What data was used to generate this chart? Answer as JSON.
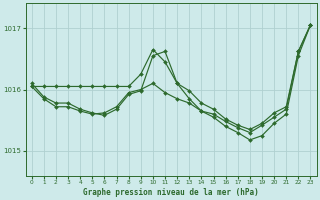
{
  "title": "Graphe pression niveau de la mer (hPa)",
  "background_color": "#ceeaea",
  "grid_color": "#b0d0d0",
  "line_color": "#2d6a2d",
  "marker_color": "#2d6a2d",
  "xlim": [
    -0.5,
    23.5
  ],
  "ylim": [
    1014.6,
    1017.4
  ],
  "yticks": [
    1015,
    1016,
    1017
  ],
  "xticks": [
    0,
    1,
    2,
    3,
    4,
    5,
    6,
    7,
    8,
    9,
    10,
    11,
    12,
    13,
    14,
    15,
    16,
    17,
    18,
    19,
    20,
    21,
    22,
    23
  ],
  "series": [
    {
      "x": [
        0,
        1,
        2,
        3,
        4,
        5,
        6,
        7,
        8,
        9,
        10,
        11,
        12,
        13,
        14,
        15,
        16,
        17,
        18,
        19,
        20,
        21,
        22,
        23
      ],
      "y": [
        1016.1,
        1015.85,
        1015.75,
        1015.75,
        1015.65,
        1015.6,
        1015.6,
        1015.7,
        1015.95,
        1016.0,
        1016.6,
        1016.5,
        1016.15,
        1016.0,
        1015.75,
        1015.7,
        1015.5,
        1015.4,
        1015.35,
        1015.45,
        1015.6,
        1015.7,
        1016.65,
        1017.05
      ]
    },
    {
      "x": [
        0,
        1,
        2,
        3,
        4,
        5,
        6,
        7,
        8,
        9,
        10,
        11,
        12,
        13,
        14,
        15,
        16,
        17,
        18,
        19,
        20,
        21,
        22,
        23
      ],
      "y": [
        1016.1,
        1015.85,
        1015.72,
        1015.72,
        1015.62,
        1015.58,
        1015.6,
        1015.75,
        1016.0,
        1016.0,
        1016.1,
        1016.0,
        1015.95,
        1015.88,
        1015.7,
        1015.62,
        1015.48,
        1015.38,
        1015.32,
        1015.42,
        1015.58,
        1015.7,
        1016.62,
        1017.05
      ]
    },
    {
      "x": [
        0,
        1,
        2,
        3,
        4,
        5,
        6,
        7,
        8,
        9,
        10,
        11,
        12,
        13,
        14,
        15,
        16,
        17,
        18,
        19,
        20,
        21,
        22,
        23
      ],
      "y": [
        1016.1,
        1015.85,
        1015.65,
        1015.65,
        1015.52,
        1015.45,
        1015.5,
        1015.65,
        1015.88,
        1016.02,
        1016.72,
        1016.55,
        1016.05,
        1015.75,
        1015.48,
        1015.38,
        1015.3,
        1015.22,
        1015.15,
        1015.35,
        1015.55,
        1015.68,
        1016.62,
        1017.05
      ]
    }
  ]
}
